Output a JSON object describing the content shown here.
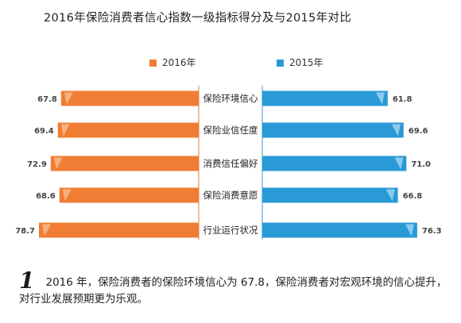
{
  "title": "2016年保险消费者信心指数一级指标得分及与2015年对比",
  "legend": {
    "series_2016": "2016年",
    "series_2015": "2015年"
  },
  "caption": {
    "number": "1",
    "text": "2016 年，保险消费者的保险环境信心为 67.8，保险消费者对宏观环境的信心提升，对行业发展预期更为乐观。"
  },
  "colors": {
    "series_2016": "#f07d33",
    "series_2015": "#2a9ad6"
  },
  "chart_data": {
    "type": "bar",
    "orientation": "horizontal-butterfly",
    "title": "2016年保险消费者信心指数一级指标得分及与2015年对比",
    "categories": [
      "保险环境信心",
      "保险业信任度",
      "消费信任偏好",
      "保险消费意愿",
      "行业运行状况"
    ],
    "series": [
      {
        "name": "2016年",
        "values": [
          67.8,
          69.4,
          72.9,
          68.6,
          78.7
        ],
        "direction": "left"
      },
      {
        "name": "2015年",
        "values": [
          61.8,
          69.6,
          71.0,
          66.8,
          76.3
        ],
        "direction": "right"
      }
    ],
    "value_labels": {
      "2016": [
        "67.8",
        "69.4",
        "72.9",
        "68.6",
        "78.7"
      ],
      "2015": [
        "61.8",
        "69.6",
        "71.0",
        "66.8",
        "76.3"
      ]
    },
    "legend_position": "top",
    "grid": false
  }
}
